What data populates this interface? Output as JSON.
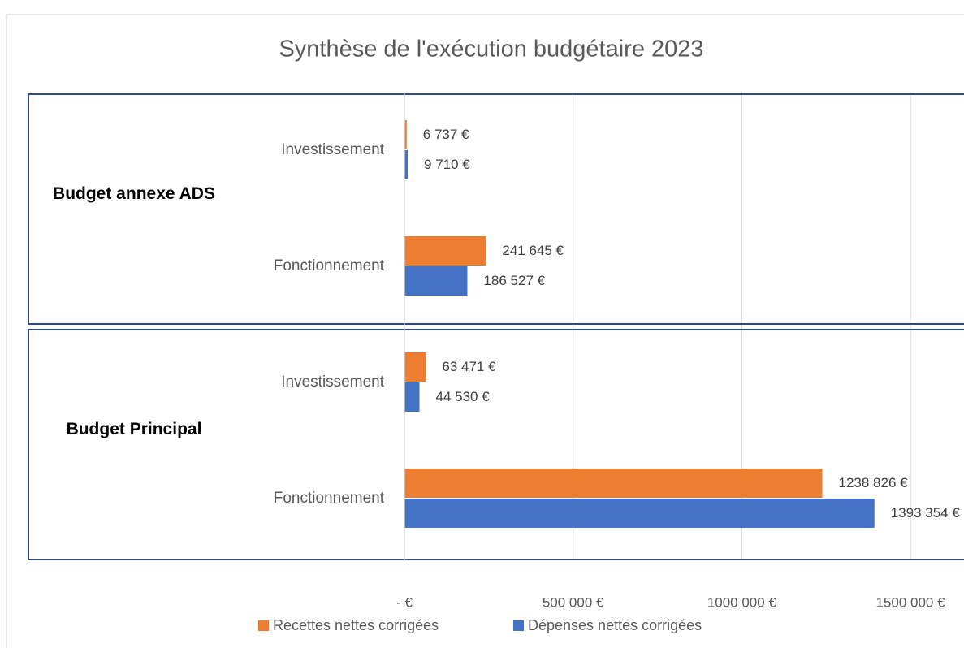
{
  "chart_data": {
    "type": "bar",
    "orientation": "horizontal",
    "title": "Synthèse de l'exécution budgétaire 2023",
    "groups": [
      {
        "label": "Budget annexe ADS",
        "categories": [
          0,
          1
        ]
      },
      {
        "label": "Budget Principal",
        "categories": [
          2,
          3
        ]
      }
    ],
    "categories": [
      "Investissement",
      "Fonctionnement",
      "Investissement",
      "Fonctionnement"
    ],
    "series": [
      {
        "name": "Recettes nettes corrigées",
        "color": "#ed7d31",
        "values": [
          6737,
          241645,
          63471,
          1238826
        ],
        "value_labels": [
          "6 737 €",
          "241 645 €",
          "63 471 €",
          "1238 826 €"
        ]
      },
      {
        "name": "Dépenses nettes corrigées",
        "color": "#4472c4",
        "values": [
          9710,
          186527,
          44530,
          1393354
        ],
        "value_labels": [
          "9 710 €",
          "186 527 €",
          "44 530 €",
          "1393 354 €"
        ]
      }
    ],
    "xlim": [
      0,
      1500000
    ],
    "xticks": [
      {
        "value": 0,
        "label": "-  €"
      },
      {
        "value": 500000,
        "label": "500 000 €"
      },
      {
        "value": 1000000,
        "label": "1000 000 €"
      },
      {
        "value": 1500000,
        "label": "1500 000 €"
      }
    ],
    "grid": true,
    "legend": "bottom"
  }
}
